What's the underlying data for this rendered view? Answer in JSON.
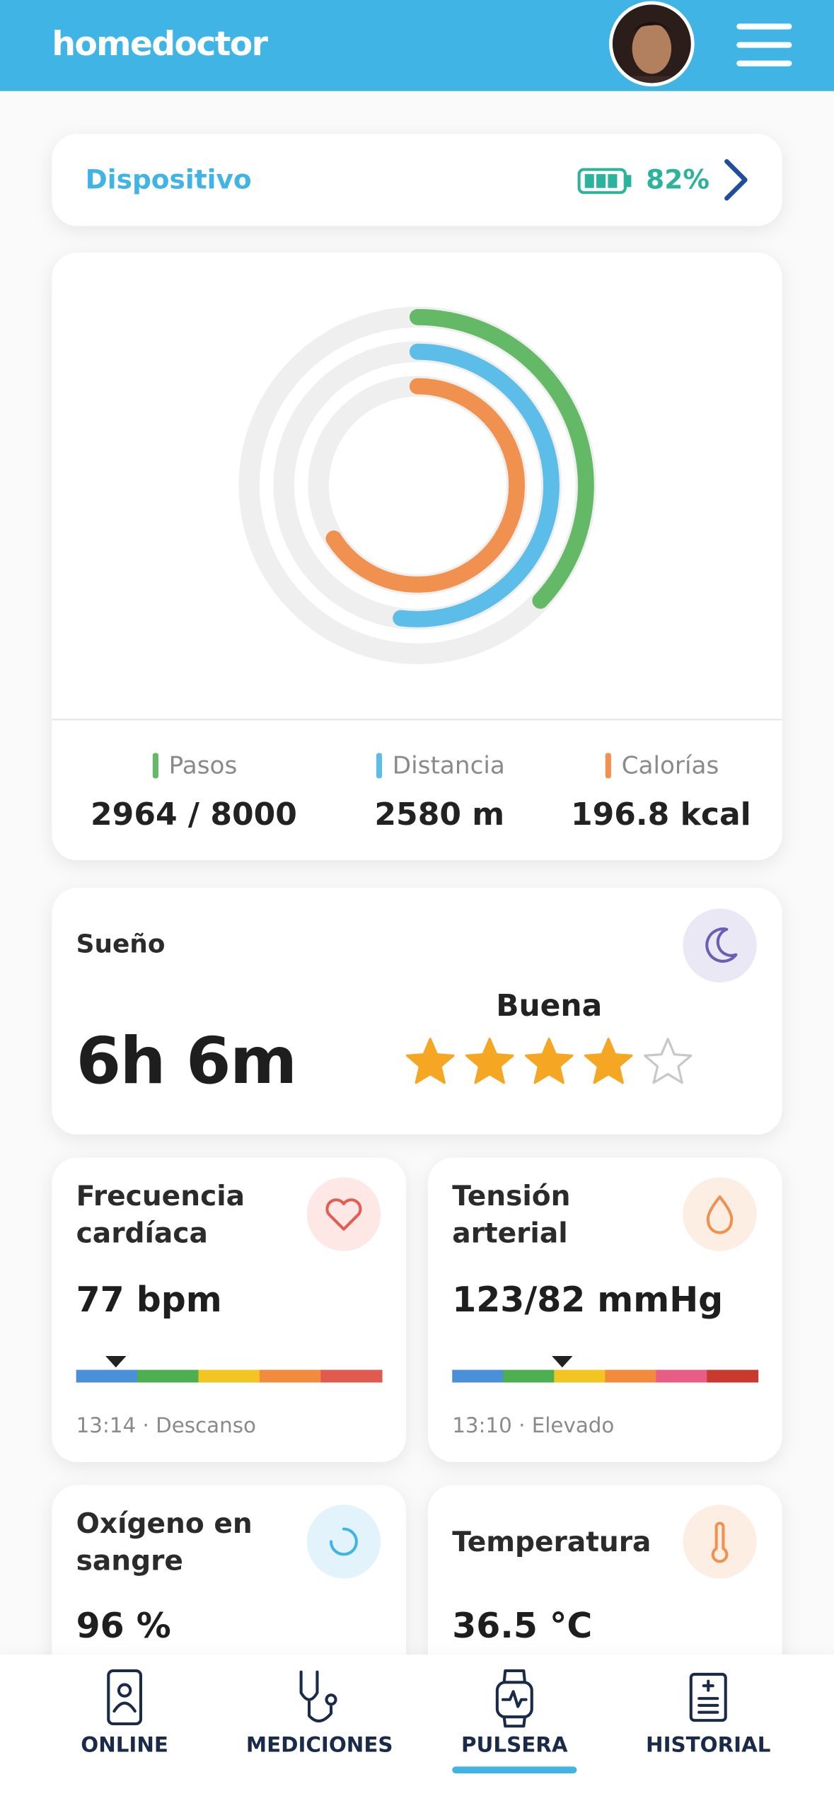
{
  "header": {
    "logo": "homedoctor"
  },
  "device": {
    "label": "Dispositivo",
    "battery": "82%"
  },
  "activity": {
    "items": [
      {
        "label": "Pasos",
        "value": "2964 / 8000",
        "color": "#63b966",
        "progress": 0.37
      },
      {
        "label": "Distancia",
        "value": "2580 m",
        "color": "#5bbde8",
        "progress": 0.52
      },
      {
        "label": "Calorías",
        "value": "196.8 kcal",
        "color": "#f0914f",
        "progress": 0.66
      }
    ]
  },
  "sleep": {
    "title": "Sueño",
    "duration": "6h 6m",
    "quality": "Buena",
    "rating": 4,
    "rating_max": 5
  },
  "cards": [
    {
      "title_lines": [
        "Frecuencia",
        "cardíaca"
      ],
      "value": "77 bpm",
      "gauge_colors": [
        "#4a90d9",
        "#4caf50",
        "#f2c522",
        "#f28b3c",
        "#e05a4f"
      ],
      "gauge_position": 0.13,
      "footer": "13:14 · Descanso"
    },
    {
      "title_lines": [
        "Tensión",
        "arterial"
      ],
      "value": "123/82 mmHg",
      "gauge_colors": [
        "#4a90d9",
        "#4caf50",
        "#f2c522",
        "#f28b3c",
        "#e85c86",
        "#c9392e"
      ],
      "gauge_position": 0.36,
      "footer": "13:10 · Elevado"
    },
    {
      "title_lines": [
        "Oxígeno en",
        "sangre"
      ],
      "value": "96 %"
    },
    {
      "title_lines": [
        "Temperatura"
      ],
      "value": "36.5 °C"
    }
  ],
  "nav": {
    "items": [
      "ONLINE",
      "MEDICIONES",
      "PULSERA",
      "HISTORIAL"
    ],
    "active": 2
  }
}
